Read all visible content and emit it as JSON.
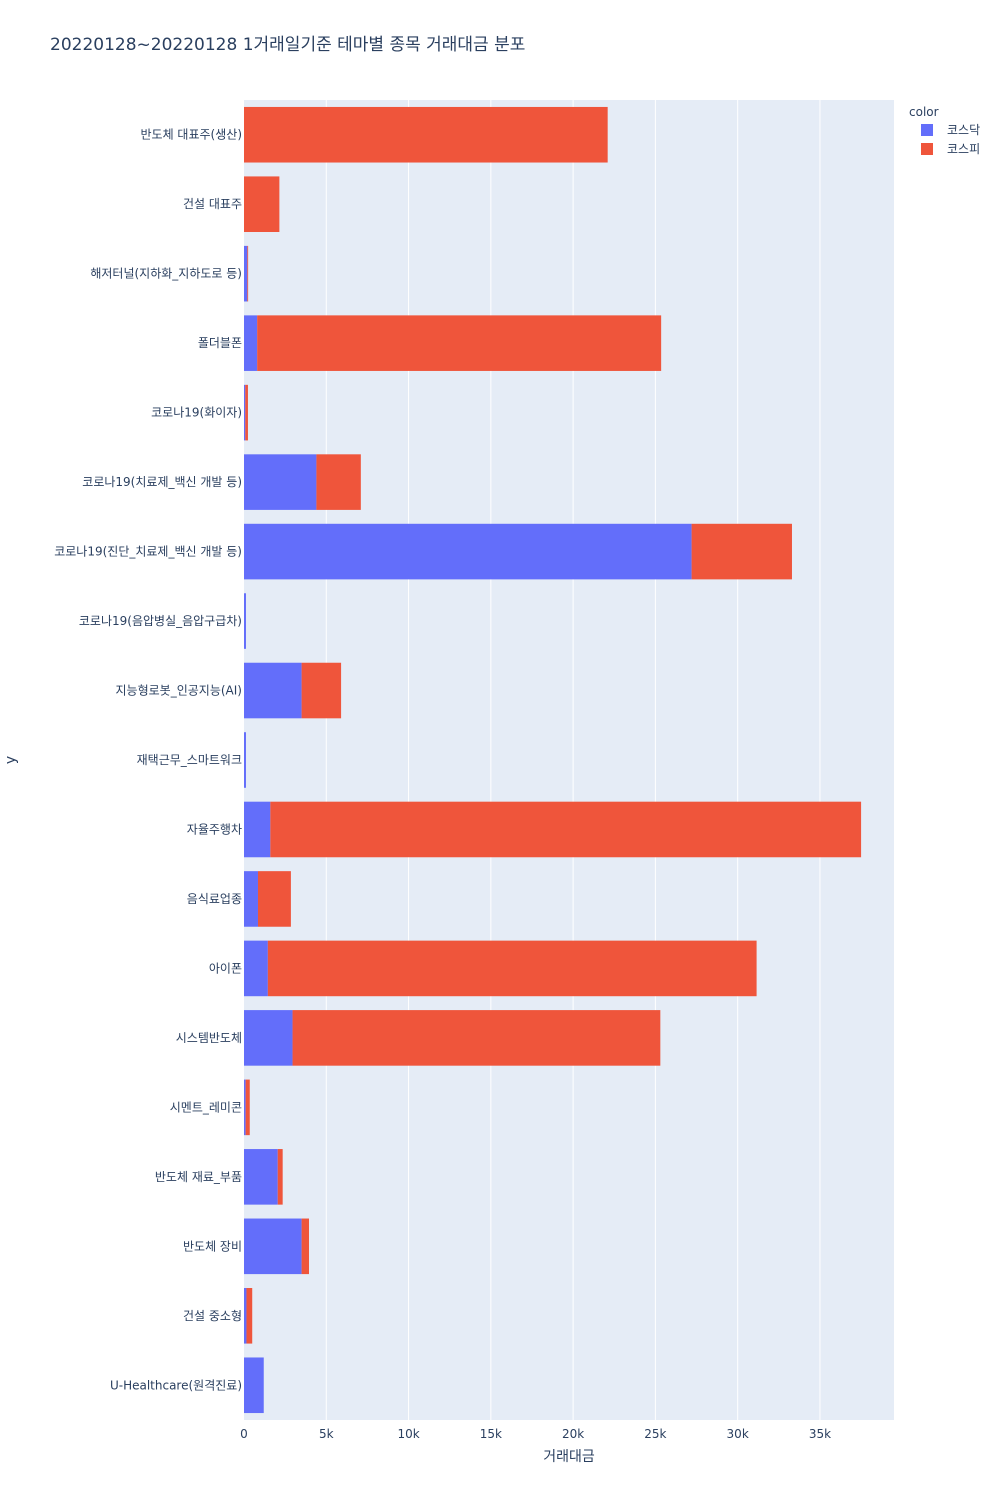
{
  "chart_data": {
    "type": "bar",
    "orientation": "horizontal",
    "barmode": "stack",
    "title": "20220128~20220128 1거래일기준 테마별 종목 거래대금 분포",
    "xlabel": "거래대금",
    "ylabel": "y",
    "xlim": [
      0,
      39500
    ],
    "xticks": [
      0,
      5000,
      10000,
      15000,
      20000,
      25000,
      30000,
      35000
    ],
    "xtick_labels": [
      "0",
      "5k",
      "10k",
      "15k",
      "20k",
      "25k",
      "30k",
      "35k"
    ],
    "grid": true,
    "legend_title": "color",
    "legend_position": "top-right",
    "categories": [
      "반도체 대표주(생산)",
      "건설 대표주",
      "해저터널(지하화_지하도로 등)",
      "폴더블폰",
      "코로나19(화이자)",
      "코로나19(치료제_백신 개발 등)",
      "코로나19(진단_치료제_백신 개발 등)",
      "코로나19(음압병실_음압구급차)",
      "지능형로봇_인공지능(AI)",
      "재택근무_스마트워크",
      "자율주행차",
      "음식료업종",
      "아이폰",
      "시스템반도체",
      "시멘트_레미콘",
      "반도체 재료_부품",
      "반도체 장비",
      "건설 중소형",
      "U-Healthcare(원격진료)"
    ],
    "series": [
      {
        "name": "코스닥",
        "color": "#636efa",
        "values": [
          0,
          0,
          200,
          800,
          80,
          4400,
          27200,
          120,
          3500,
          120,
          1600,
          850,
          1450,
          2950,
          100,
          2050,
          3500,
          150,
          1200
        ]
      },
      {
        "name": "코스피",
        "color": "#ef553b",
        "values": [
          22100,
          2150,
          50,
          24550,
          160,
          2700,
          6100,
          0,
          2400,
          0,
          35900,
          2000,
          29700,
          22350,
          250,
          300,
          450,
          350,
          0
        ]
      }
    ]
  }
}
